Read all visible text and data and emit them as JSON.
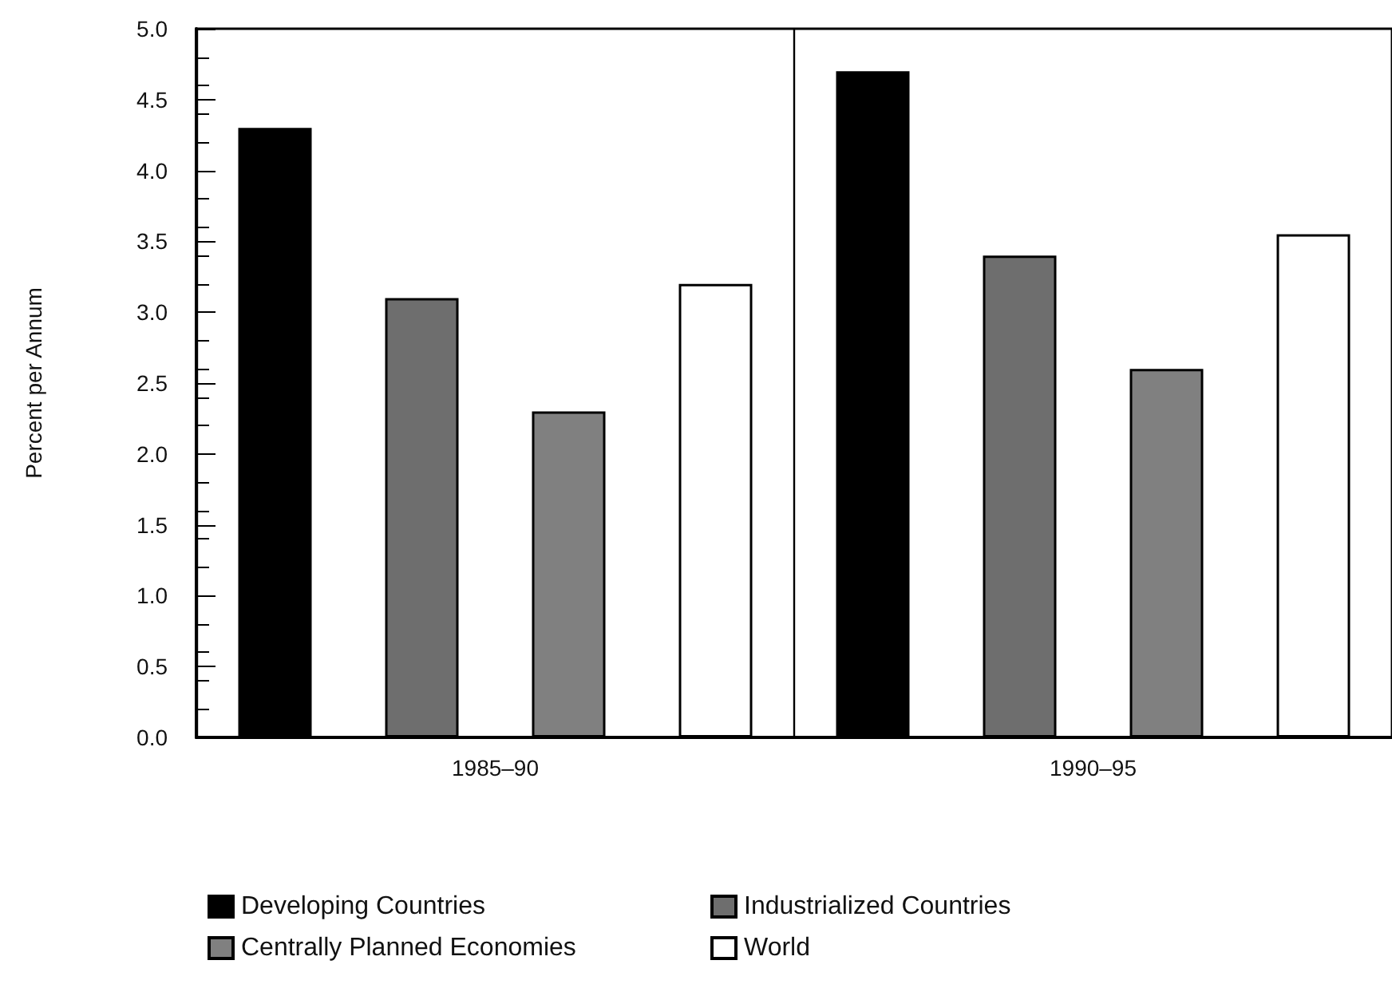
{
  "chart_data": {
    "type": "bar",
    "ylabel": "Percent per Annum",
    "categories": [
      "1985–90",
      "1990–95"
    ],
    "series": [
      {
        "name": "Developing Countries",
        "color": "#000000",
        "values": [
          4.3,
          4.7
        ]
      },
      {
        "name": "Industrialized Countries",
        "color": "#6e6e6e",
        "values": [
          3.1,
          3.4
        ]
      },
      {
        "name": "Centrally Planned Economies",
        "color": "#808080",
        "values": [
          2.3,
          2.6
        ]
      },
      {
        "name": "World",
        "color": "#ffffff",
        "values": [
          3.2,
          3.55
        ]
      }
    ],
    "ylim": [
      0,
      5
    ],
    "yticks": [
      {
        "value": 0,
        "label": "0.0"
      },
      {
        "value": 0.5,
        "label": "0.5"
      },
      {
        "value": 1,
        "label": "1.0"
      },
      {
        "value": 1.5,
        "label": "1.5"
      },
      {
        "value": 2,
        "label": "2.0"
      },
      {
        "value": 2.5,
        "label": "2.5"
      },
      {
        "value": 3,
        "label": "3.0"
      },
      {
        "value": 3.5,
        "label": "3.5"
      },
      {
        "value": 4,
        "label": "4.0"
      },
      {
        "value": 4.5,
        "label": "4.5"
      },
      {
        "value": 5,
        "label": "5.0"
      }
    ],
    "legend": "bottom"
  }
}
